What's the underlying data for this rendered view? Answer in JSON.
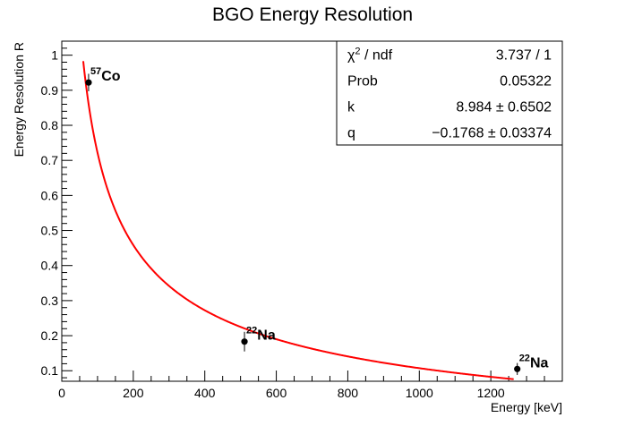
{
  "chart_data": {
    "type": "scatter",
    "title": "BGO Energy Resolution",
    "xlabel": "Energy [keV]",
    "ylabel": "Energy Resolution R",
    "xlim": [
      0,
      1400
    ],
    "ylim": [
      0.07,
      1.04
    ],
    "x_ticks": [
      0,
      200,
      400,
      600,
      800,
      1000,
      1200
    ],
    "y_ticks": [
      0.1,
      0.2,
      0.3,
      0.4,
      0.5,
      0.6,
      0.7,
      0.8,
      0.9,
      1
    ],
    "grid": false,
    "series": [
      {
        "points": [
          {
            "x": 75,
            "y": 0.922,
            "err": 0.025
          },
          {
            "x": 511,
            "y": 0.183,
            "err": 0.028
          },
          {
            "x": 1274,
            "y": 0.105,
            "err": 0.017
          }
        ]
      }
    ],
    "point_labels": [
      {
        "isotope_mass": "57",
        "element": "Co"
      },
      {
        "isotope_mass": "22",
        "element": "Na"
      },
      {
        "isotope_mass": "22",
        "element": "Na"
      }
    ],
    "fit": {
      "k": 8.984,
      "q": -0.1768,
      "x_range": [
        60,
        1265
      ],
      "color": "#ff0000"
    },
    "stats_box": {
      "position": "top-right",
      "rows": [
        {
          "label_main": "χ",
          "label_sup": "2",
          "label_rest": " / ndf",
          "value": "3.737 / 1"
        },
        {
          "label_main": "Prob",
          "label_sup": "",
          "label_rest": "",
          "value": "0.05322"
        },
        {
          "label_main": "k",
          "label_sup": "",
          "label_rest": "",
          "value": "8.984 ± 0.6502"
        },
        {
          "label_main": "q",
          "label_sup": "",
          "label_rest": "",
          "value": "−0.1768 ± 0.03374"
        }
      ]
    }
  }
}
